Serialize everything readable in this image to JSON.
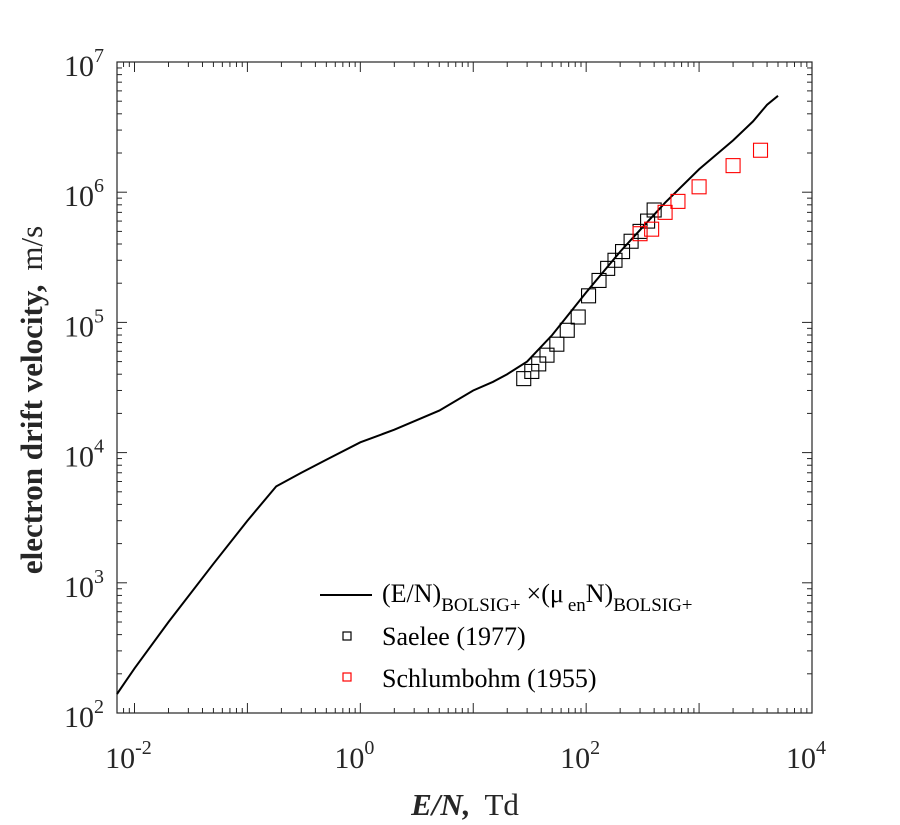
{
  "chart_data": {
    "type": "scatter",
    "xscale": "log",
    "yscale": "log",
    "xlim": [
      0.007,
      10000
    ],
    "ylim": [
      100,
      10000000
    ],
    "xticks": [
      {
        "base": "10",
        "exp": "-2",
        "value": 0.01
      },
      {
        "base": "10",
        "exp": "0",
        "value": 1
      },
      {
        "base": "10",
        "exp": "2",
        "value": 100
      },
      {
        "base": "10",
        "exp": "4",
        "value": 10000
      }
    ],
    "yticks": [
      {
        "base": "10",
        "exp": "2",
        "value": 100
      },
      {
        "base": "10",
        "exp": "3",
        "value": 1000
      },
      {
        "base": "10",
        "exp": "4",
        "value": 10000
      },
      {
        "base": "10",
        "exp": "5",
        "value": 100000
      },
      {
        "base": "10",
        "exp": "6",
        "value": 1000000
      },
      {
        "base": "10",
        "exp": "7",
        "value": 10000000
      }
    ],
    "xlabel": {
      "bold": "E/N,",
      "rest": "Td"
    },
    "ylabel": {
      "bold": "electron drift velocity,",
      "rest": "m/s"
    },
    "legend_position": "bottom-right",
    "grid": false,
    "series": [
      {
        "legend": {
          "part1": "(E/N)",
          "sub1": "BOLSIG+",
          "part2": "×(μ",
          "sub2": "en",
          "part3": "N)",
          "sub3": "BOLSIG+"
        },
        "style": "line",
        "color": "#000000",
        "x": [
          0.007,
          0.01,
          0.02,
          0.05,
          0.1,
          0.18,
          0.3,
          0.5,
          1,
          2,
          5,
          10,
          15,
          20,
          30,
          50,
          100,
          200,
          500,
          1000,
          2000,
          3000,
          4000,
          5000
        ],
        "y": [
          140,
          220,
          500,
          1400,
          3000,
          5500,
          7000,
          8800,
          12000,
          15000,
          21000,
          30000,
          35000,
          40000,
          50000,
          80000,
          170000,
          350000,
          830000,
          1500000,
          2500000,
          3500000,
          4700000,
          5500000
        ]
      },
      {
        "name": "Saelee (1977)",
        "style": "markers",
        "marker": "square",
        "color": "#000000",
        "x": [
          28,
          33,
          38,
          45,
          55,
          68,
          85,
          105,
          130,
          155,
          180,
          210,
          250,
          300,
          350,
          400
        ],
        "y": [
          37000,
          42000,
          48000,
          56000,
          68000,
          87000,
          110000,
          160000,
          210000,
          260000,
          300000,
          350000,
          420000,
          500000,
          600000,
          730000
        ]
      },
      {
        "name": "Schlumbohm (1955)",
        "style": "markers",
        "marker": "square",
        "color": "#ff0000",
        "x": [
          300,
          380,
          500,
          650,
          1000,
          2000,
          3500
        ],
        "y": [
          480000,
          520000,
          700000,
          850000,
          1100000,
          1600000,
          2100000
        ]
      }
    ]
  }
}
